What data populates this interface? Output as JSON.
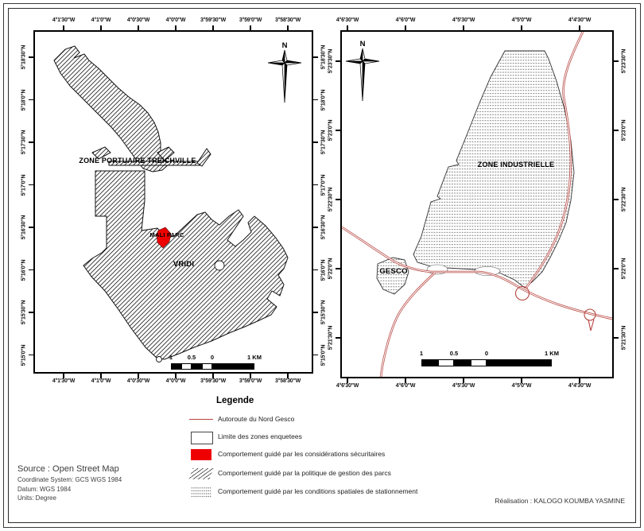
{
  "maps": {
    "left": {
      "north_label": "N",
      "x_ticks": [
        "4°1'30\"W",
        "4°1'0\"W",
        "4°0'30\"W",
        "4°0'0\"W",
        "3°59'30\"W",
        "3°59'0\"W",
        "3°58'30\"W"
      ],
      "y_ticks": [
        "5°18'30\"N",
        "5°18'0\"N",
        "5°17'30\"N",
        "5°17'0\"N",
        "5°16'30\"N",
        "5°16'0\"N",
        "5°15'30\"N",
        "5°15'0\"N"
      ],
      "area_labels": {
        "treichville": "ZONE PORTUAIRE TREICHVILLE",
        "vridi": "VRIDI",
        "mali_parc": "MALI PARC"
      },
      "scalebar_labels": [
        "1",
        "0.5",
        "0",
        "1 KM"
      ]
    },
    "right": {
      "north_label": "N",
      "x_ticks": [
        "4°6'30\"W",
        "4°6'0\"W",
        "4°5'30\"W",
        "4°5'0\"W",
        "4°4'30\"W"
      ],
      "y_ticks": [
        "5°23'30\"N",
        "5°23'0\"N",
        "5°22'30\"N",
        "5°22'0\"N",
        "5°21'30\"N"
      ],
      "area_labels": {
        "zone_industrielle": "ZONE INDUSTRIELLE",
        "gesco": "GESCO"
      },
      "scalebar_labels": [
        "1",
        "0.5",
        "0",
        "1 KM"
      ]
    }
  },
  "legend": {
    "title": "Legende",
    "items": [
      {
        "swatch": "line",
        "label": "Autoroute du Nord Gesco"
      },
      {
        "swatch": "outline",
        "label": "Limite des zones enquetees"
      },
      {
        "swatch": "red",
        "label": "Comportement guidé par les considérations sécuritaires"
      },
      {
        "swatch": "hatch",
        "label": "Comportement guidé par la politique de gestion des parcs"
      },
      {
        "swatch": "dots",
        "label": "Comportement guidé par les conditions spatiales de stationnement"
      }
    ]
  },
  "source_block": {
    "source": "Source : Open Street Map",
    "coordinate_system": "Coordinate System: GCS WGS 1984",
    "datum": "Datum: WGS 1984",
    "units": "Units: Degree"
  },
  "credit": "Réalisation : KALOGO KOUMBA YASMINE",
  "colors": {
    "highway": "#b5443f",
    "secured_parc": "#ee0000",
    "outline": "#000000"
  }
}
